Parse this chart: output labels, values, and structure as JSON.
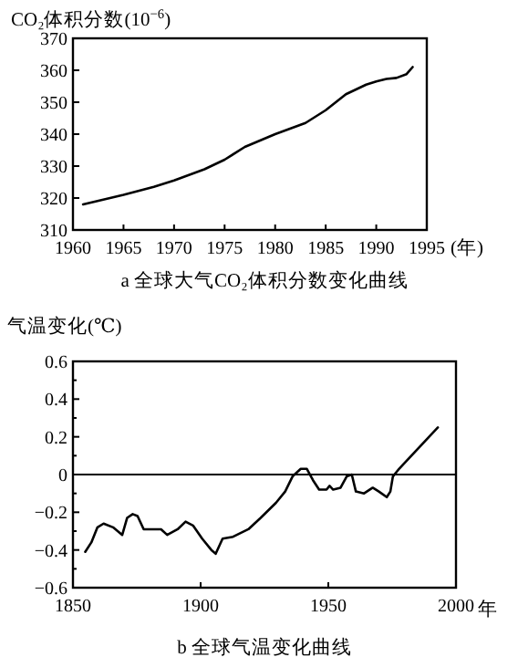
{
  "chart_data": [
    {
      "type": "line",
      "title": "a  全球大气CO₂体积分数变化曲线",
      "ylabel": "CO₂体积分数(10$^{−6}$)",
      "xlabel": "(年)",
      "x": [
        1961,
        1963,
        1965,
        1968,
        1970,
        1973,
        1975,
        1977,
        1980,
        1983,
        1985,
        1987,
        1989,
        1990,
        1991,
        1992,
        1993,
        1993.6
      ],
      "series": [
        {
          "color": "#000000",
          "values": [
            318,
            319.5,
            321,
            323.5,
            325.5,
            329,
            332,
            336,
            340,
            343.5,
            347.5,
            352.5,
            355.5,
            356.5,
            357.3,
            357.6,
            358.8,
            361
          ]
        }
      ],
      "xlim": [
        1960,
        1995
      ],
      "xticks": [
        1960,
        1965,
        1970,
        1975,
        1980,
        1985,
        1990,
        1995
      ],
      "ylim": [
        310,
        370
      ],
      "yticks": [
        310,
        320,
        330,
        340,
        350,
        360,
        370
      ]
    },
    {
      "type": "line",
      "title": "b  全球气温变化曲线",
      "ylabel": "气温变化(℃)",
      "xlabel": "年",
      "x": [
        1854.8,
        1857.2,
        1859.6,
        1862,
        1865.7,
        1869.3,
        1871.2,
        1873.4,
        1875.3,
        1877.7,
        1881.3,
        1884.5,
        1886.9,
        1891,
        1894.1,
        1897,
        1900.6,
        1904.2,
        1905.9,
        1908.6,
        1912.7,
        1918.7,
        1923.5,
        1929.5,
        1933.1,
        1936,
        1939.2,
        1941.6,
        1944,
        1946.4,
        1949.3,
        1950.5,
        1951.9,
        1954.8,
        1957.2,
        1959.2,
        1960.8,
        1964,
        1967.4,
        1969.8,
        1972.9,
        1974.3,
        1975.3,
        1977.7,
        1992.9
      ],
      "series": [
        {
          "color": "#000000",
          "values": [
            -0.41,
            -0.36,
            -0.28,
            -0.26,
            -0.28,
            -0.32,
            -0.23,
            -0.21,
            -0.22,
            -0.29,
            -0.29,
            -0.29,
            -0.32,
            -0.29,
            -0.25,
            -0.27,
            -0.34,
            -0.4,
            -0.42,
            -0.34,
            -0.33,
            -0.29,
            -0.23,
            -0.15,
            -0.09,
            -0.01,
            0.03,
            0.03,
            -0.03,
            -0.08,
            -0.08,
            -0.06,
            -0.08,
            -0.07,
            -0.01,
            0.0,
            -0.09,
            -0.1,
            -0.07,
            -0.09,
            -0.12,
            -0.09,
            -0.01,
            0.03,
            0.25
          ]
        }
      ],
      "xlim": [
        1850,
        2000
      ],
      "xticks": [
        1850,
        1900,
        1950,
        2000
      ],
      "ylim": [
        -0.6,
        0.6
      ],
      "yticks": [
        {
          "value": -0.6,
          "label": "−0.6"
        },
        {
          "value": -0.5,
          "label": null
        },
        {
          "value": -0.4,
          "label": "−0.4"
        },
        {
          "value": -0.3,
          "label": null
        },
        {
          "value": -0.2,
          "label": "−0.2"
        },
        {
          "value": -0.1,
          "label": null
        },
        0,
        {
          "value": 0.1,
          "label": null
        },
        0.2,
        {
          "value": 0.3,
          "label": null
        },
        0.4,
        {
          "value": 0.5,
          "label": null
        },
        0.6
      ],
      "ref_lines": [
        {
          "axis": "y",
          "value": 0,
          "color": "#000000"
        }
      ]
    }
  ]
}
